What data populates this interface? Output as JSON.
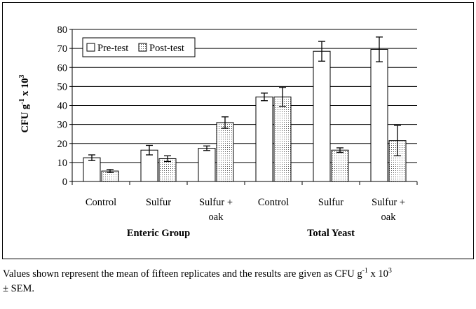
{
  "chart_data": {
    "type": "bar",
    "ylabel": {
      "main": "CFU g",
      "exp1": "-1",
      "mid": " x 10",
      "exp2": "3"
    },
    "ylim": [
      0,
      80
    ],
    "yticks": [
      0,
      10,
      20,
      30,
      40,
      50,
      60,
      70,
      80
    ],
    "grid": true,
    "legend": {
      "placement": "top-left"
    },
    "categories": [
      {
        "label": [
          "Control"
        ]
      },
      {
        "label": [
          "Sulfur"
        ]
      },
      {
        "label": [
          "Sulfur +",
          "oak"
        ]
      },
      {
        "label": [
          "Control"
        ]
      },
      {
        "label": [
          "Sulfur"
        ]
      },
      {
        "label": [
          "Sulfur +",
          "oak"
        ]
      }
    ],
    "groups": [
      {
        "label": "Enteric Group",
        "span": [
          0,
          2
        ]
      },
      {
        "label": "Total Yeast",
        "span": [
          3,
          5
        ]
      }
    ],
    "series": [
      {
        "name": "Pre-test",
        "pattern": "solid",
        "color": "#ffffff",
        "values": [
          12.5,
          16.5,
          17.5,
          44.5,
          68.5,
          69.5
        ],
        "errors": [
          1.5,
          2.5,
          1.2,
          2.0,
          5.2,
          6.5
        ]
      },
      {
        "name": "Post-test",
        "pattern": "dots",
        "color": "#ffffff",
        "values": [
          5.5,
          12.0,
          31.0,
          44.5,
          16.5,
          21.5
        ],
        "errors": [
          0.8,
          1.5,
          3.0,
          5.0,
          1.2,
          8.0
        ]
      }
    ]
  },
  "caption": {
    "part1": "Values shown represent the mean of fifteen replicates and the results are given as CFU g",
    "exp1": "-1",
    "part2": " x 10",
    "exp2": "3",
    "part3": "± SEM."
  }
}
